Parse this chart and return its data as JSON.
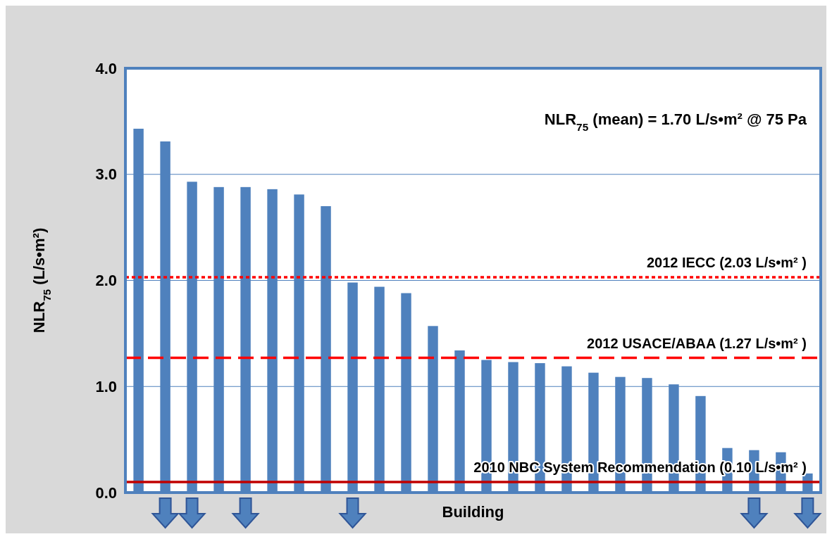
{
  "chart_data": {
    "type": "bar",
    "xlabel": "Building",
    "ylabel": "NLR$_{75}$ (L/s•m²)",
    "categories": [
      null,
      null,
      null,
      null,
      null,
      null,
      null,
      null,
      null,
      null,
      null,
      null,
      null,
      null,
      null,
      null,
      null,
      null,
      null,
      null,
      null,
      null,
      null,
      null,
      null,
      null
    ],
    "values": [
      3.43,
      3.31,
      2.93,
      2.88,
      2.88,
      2.86,
      2.81,
      2.7,
      1.98,
      1.94,
      1.88,
      1.57,
      1.34,
      1.25,
      1.23,
      1.22,
      1.19,
      1.13,
      1.09,
      1.08,
      1.02,
      0.91,
      0.42,
      0.4,
      0.38,
      0.18
    ],
    "color": "#4f81bd",
    "ylim": [
      0,
      4
    ],
    "yticks": [
      {
        "value": 0,
        "label": "0.0"
      },
      {
        "value": 1,
        "label": "1.0"
      },
      {
        "value": 2,
        "label": "2.0"
      },
      {
        "value": 3,
        "label": "3.0"
      },
      {
        "value": 4,
        "label": "4.0"
      }
    ],
    "grid": "y",
    "ref_lines": [
      {
        "axis": "y",
        "value": 2.03,
        "label": "2012 IECC (2.03 L/s•m² )",
        "color": "#ff0000",
        "line_style": "dotted"
      },
      {
        "axis": "y",
        "value": 1.27,
        "label": "2012 USACE/ABAA (1.27 L/s•m² )",
        "color": "#ff0000",
        "line_style": "dashed"
      },
      {
        "axis": "y",
        "value": 0.1,
        "label": "2010 NBC System Recommendation (0.10 L/s•m² )",
        "color": "#c00000",
        "line_style": "solid"
      }
    ],
    "annotations": [
      "NLR$_{75}$ (mean) = 1.70 L/s•m² @ 75 Pa"
    ]
  }
}
